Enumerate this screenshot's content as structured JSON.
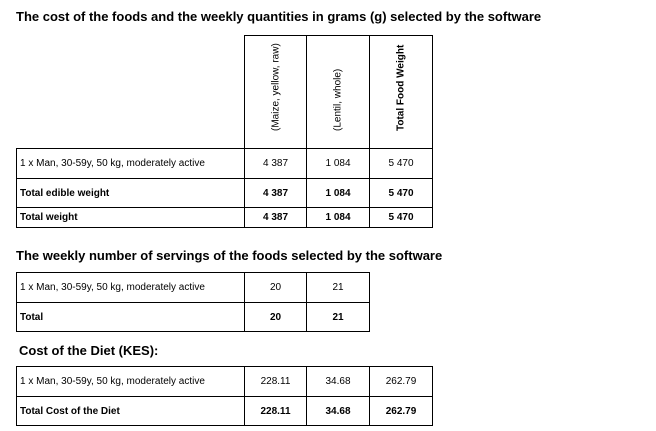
{
  "section1": {
    "title": "The cost of the foods and the weekly quantities in grams (g) selected by the software",
    "columns": [
      "(Maize, yellow, raw)",
      "(Lentil, whole)",
      "Total Food Weight"
    ],
    "rows": [
      {
        "label": "1 x Man, 30-59y, 50 kg, moderately active",
        "values": [
          "4 387",
          "1 084",
          "5 470"
        ]
      },
      {
        "label": "Total edible weight",
        "values": [
          "4 387",
          "1 084",
          "5 470"
        ]
      },
      {
        "label": "Total weight",
        "values": [
          "4 387",
          "1 084",
          "5 470"
        ]
      }
    ]
  },
  "section2": {
    "title": "The weekly number of servings of the foods selected by the software",
    "rows": [
      {
        "label": "1 x Man, 30-59y, 50 kg, moderately active",
        "values": [
          "20",
          "21"
        ]
      },
      {
        "label": "Total",
        "values": [
          "20",
          "21"
        ]
      }
    ]
  },
  "section3": {
    "title": "Cost of the Diet (KES):",
    "rows": [
      {
        "label": "1 x Man, 30-59y, 50 kg, moderately active",
        "values": [
          "228.11",
          "34.68",
          "262.79"
        ]
      },
      {
        "label": "Total Cost of the Diet",
        "values": [
          "228.11",
          "34.68",
          "262.79"
        ]
      }
    ]
  }
}
